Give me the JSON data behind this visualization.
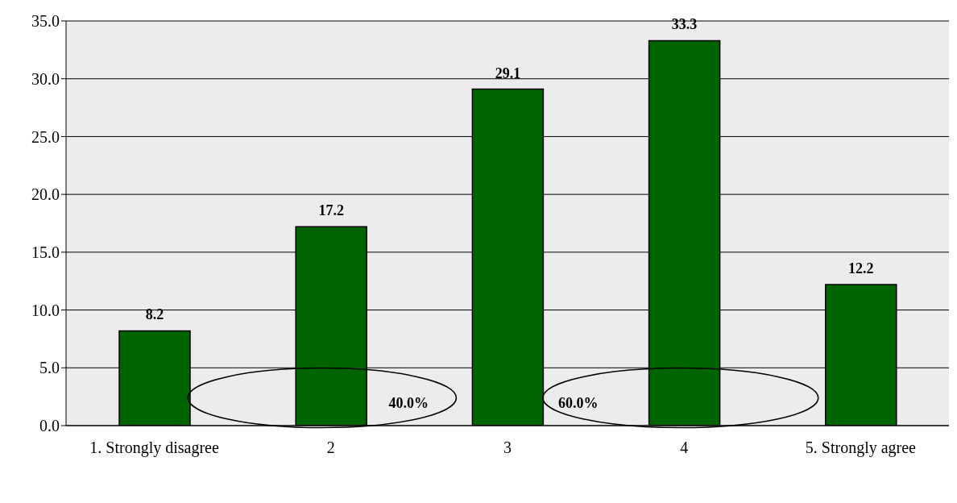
{
  "chart_data": {
    "type": "bar",
    "categories": [
      "1. Strongly disagree",
      "2",
      "3",
      "4",
      "5. Strongly agree"
    ],
    "values": [
      8.2,
      17.2,
      29.1,
      33.3,
      12.2
    ],
    "color": "#006400",
    "ylim": [
      0,
      35
    ],
    "yticks": [
      {
        "value": 0,
        "label": "0.0"
      },
      {
        "value": 5,
        "label": "5.0"
      },
      {
        "value": 10,
        "label": "10.0"
      },
      {
        "value": 15,
        "label": "15.0"
      },
      {
        "value": 20,
        "label": "20.0"
      },
      {
        "value": 25,
        "label": "25.0"
      },
      {
        "value": 30,
        "label": "30.0"
      },
      {
        "value": 35,
        "label": "35.0"
      }
    ],
    "grid": "y",
    "data_labels": true,
    "annotations": [
      "40.0%",
      "60.0%"
    ]
  }
}
